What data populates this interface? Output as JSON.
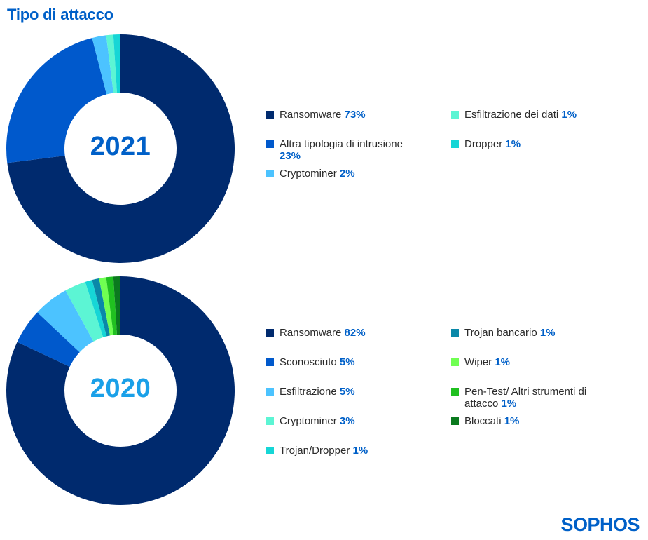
{
  "title": "Tipo di attacco",
  "logo": "SOPHOS",
  "chart_data": [
    {
      "type": "pie",
      "title": "2021",
      "categories": [
        "Ransomware",
        "Altra tipologia di intrusione",
        "Cryptominer",
        "Esfiltrazione dei dati",
        "Dropper"
      ],
      "values": [
        73,
        23,
        2,
        1,
        1
      ],
      "value_labels": [
        "73%",
        "23%",
        "2%",
        "1%",
        "1%"
      ],
      "colors": [
        "#002a6e",
        "#0059cc",
        "#4cc3ff",
        "#5cf5d4",
        "#16d6d6"
      ],
      "legend_position": "right",
      "center_color": "#0060c8"
    },
    {
      "type": "pie",
      "title": "2020",
      "categories": [
        "Ransomware",
        "Sconosciuto",
        "Esfiltrazione",
        "Cryptominer",
        "Trojan/Dropper",
        "Trojan bancario",
        "Wiper",
        "Pen-Test/ Altri strumenti di attacco",
        "Bloccati"
      ],
      "values": [
        82,
        5,
        5,
        3,
        1,
        1,
        1,
        1,
        1
      ],
      "value_labels": [
        "82%",
        "5%",
        "5%",
        "3%",
        "1%",
        "1%",
        "1%",
        "1%",
        "1%"
      ],
      "colors": [
        "#002a6e",
        "#0059cc",
        "#4cc3ff",
        "#5cf5d4",
        "#16d6d6",
        "#0a88a8",
        "#70ff52",
        "#20c020",
        "#0a7a1e"
      ],
      "legend_position": "right",
      "center_color": "#1aa0e8"
    }
  ]
}
